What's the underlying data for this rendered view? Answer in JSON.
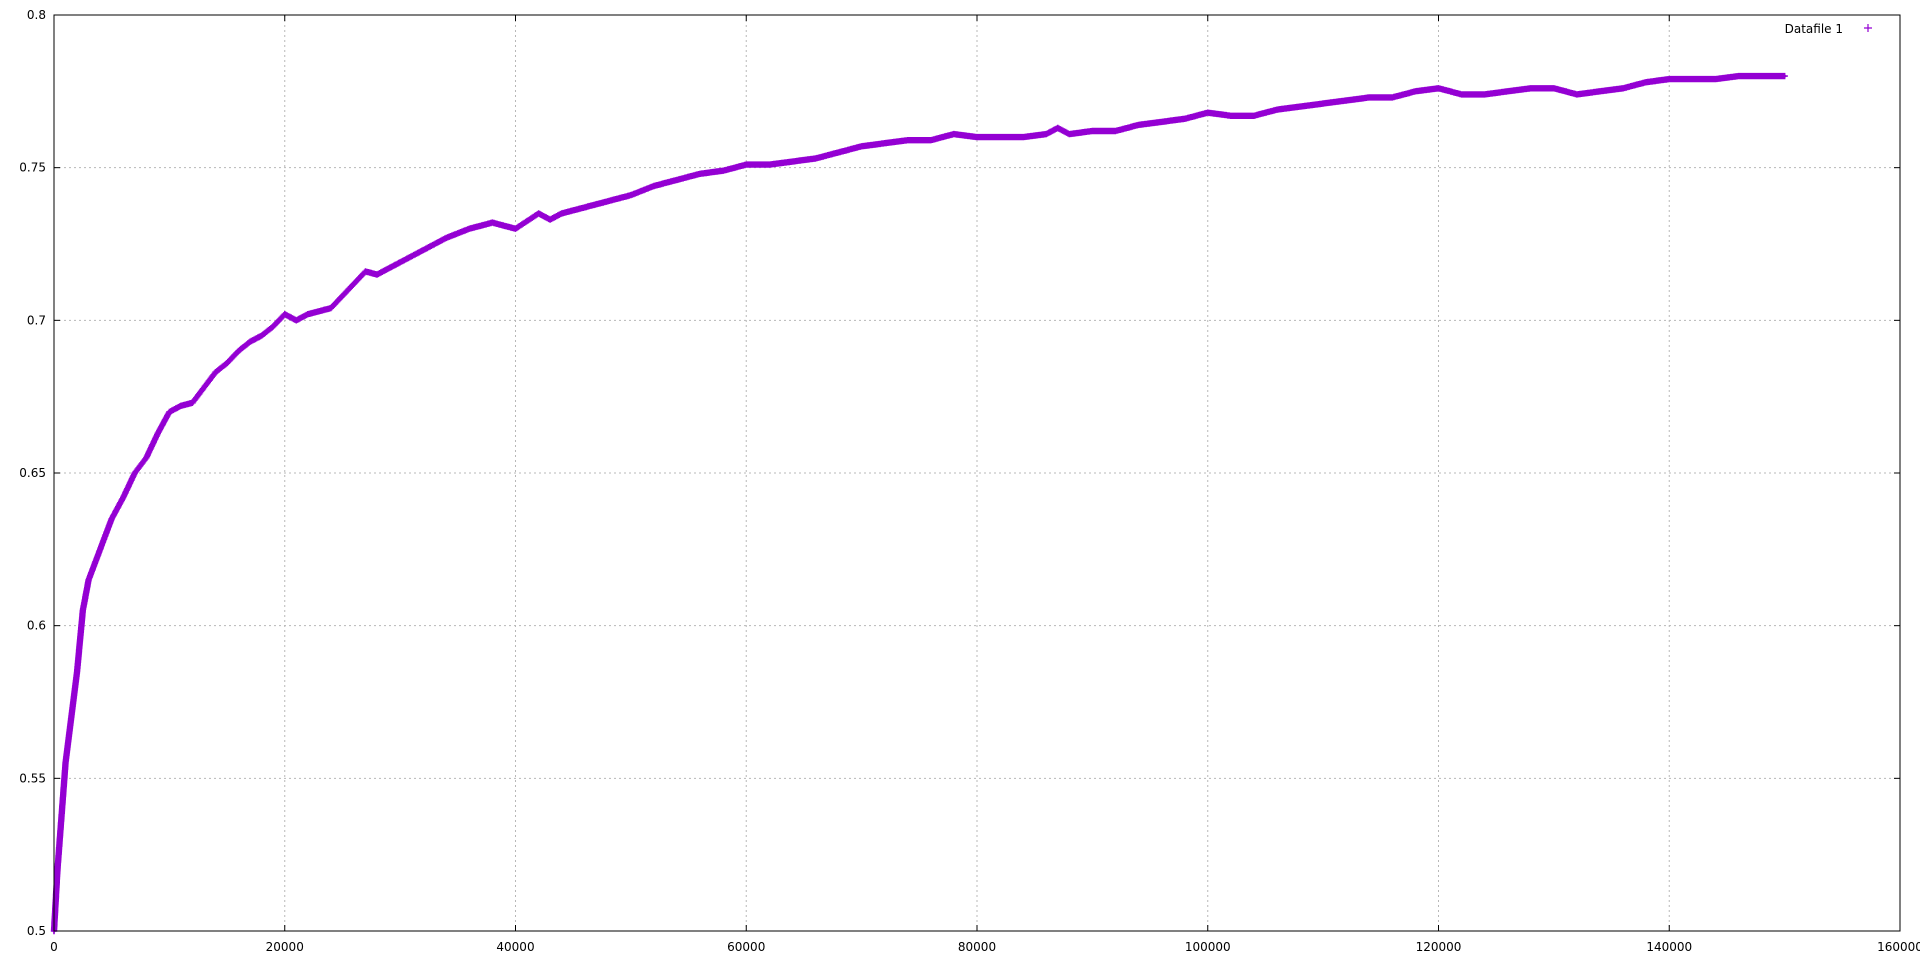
{
  "chart_data": {
    "type": "scatter",
    "title": "",
    "xlabel": "",
    "ylabel": "",
    "xlim": [
      0,
      160000
    ],
    "ylim": [
      0.5,
      0.8
    ],
    "grid": true,
    "legend_position": "top-right",
    "x_ticks": [
      "0",
      "20000",
      "40000",
      "60000",
      "80000",
      "100000",
      "120000",
      "140000",
      "160000"
    ],
    "y_ticks": [
      "0.5",
      "0.55",
      "0.6",
      "0.65",
      "0.7",
      "0.75",
      "0.8"
    ],
    "series": [
      {
        "name": "Datafile 1",
        "color": "#9400d3",
        "marker": "plus",
        "x": [
          0,
          300,
          600,
          1000,
          1500,
          2000,
          2500,
          3000,
          3500,
          4000,
          5000,
          6000,
          7000,
          8000,
          9000,
          10000,
          11000,
          12000,
          13000,
          14000,
          15000,
          16000,
          17000,
          18000,
          19000,
          20000,
          21000,
          22000,
          23000,
          24000,
          25000,
          26000,
          27000,
          28000,
          29000,
          30000,
          32000,
          34000,
          36000,
          38000,
          40000,
          42000,
          43000,
          44000,
          46000,
          48000,
          50000,
          52000,
          54000,
          56000,
          58000,
          60000,
          62000,
          64000,
          66000,
          68000,
          70000,
          72000,
          74000,
          76000,
          78000,
          80000,
          82000,
          84000,
          86000,
          87000,
          88000,
          90000,
          92000,
          94000,
          96000,
          98000,
          100000,
          102000,
          104000,
          106000,
          108000,
          110000,
          112000,
          114000,
          116000,
          118000,
          120000,
          122000,
          124000,
          126000,
          128000,
          130000,
          132000,
          134000,
          136000,
          138000,
          140000,
          142000,
          144000,
          146000,
          148000,
          150000
        ],
        "y": [
          0.5,
          0.52,
          0.535,
          0.555,
          0.57,
          0.585,
          0.605,
          0.615,
          0.62,
          0.625,
          0.635,
          0.642,
          0.65,
          0.655,
          0.663,
          0.67,
          0.672,
          0.673,
          0.678,
          0.683,
          0.686,
          0.69,
          0.693,
          0.695,
          0.698,
          0.702,
          0.7,
          0.702,
          0.703,
          0.704,
          0.708,
          0.712,
          0.716,
          0.715,
          0.717,
          0.719,
          0.723,
          0.727,
          0.73,
          0.732,
          0.73,
          0.735,
          0.733,
          0.735,
          0.737,
          0.739,
          0.741,
          0.744,
          0.746,
          0.748,
          0.749,
          0.751,
          0.751,
          0.752,
          0.753,
          0.755,
          0.757,
          0.758,
          0.759,
          0.759,
          0.761,
          0.76,
          0.76,
          0.76,
          0.761,
          0.763,
          0.761,
          0.762,
          0.762,
          0.764,
          0.765,
          0.766,
          0.768,
          0.767,
          0.767,
          0.769,
          0.77,
          0.771,
          0.772,
          0.773,
          0.773,
          0.775,
          0.776,
          0.774,
          0.774,
          0.775,
          0.776,
          0.776,
          0.774,
          0.775,
          0.776,
          0.778,
          0.779,
          0.779,
          0.779,
          0.78,
          0.78,
          0.78
        ]
      }
    ]
  }
}
